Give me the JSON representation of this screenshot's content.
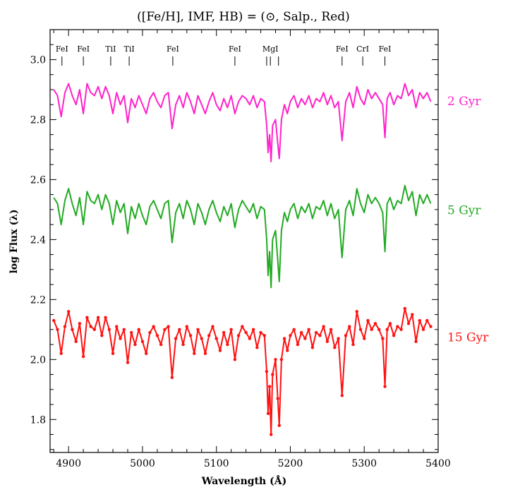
{
  "chart_data": {
    "type": "line",
    "title": "([Fe/H], IMF, HB) = (⊙, Salp., Red)",
    "xlabel": "Wavelength (Å)",
    "ylabel": "log Flux (λ)",
    "xlim": [
      4875,
      5400
    ],
    "ylim": [
      1.69,
      3.1
    ],
    "x_ticks": [
      4900,
      5000,
      5100,
      5200,
      5300,
      5400
    ],
    "x_tick_labels": [
      "4900",
      "5000",
      "5100",
      "5200",
      "5300",
      "5400"
    ],
    "y_ticks": [
      1.8,
      2.0,
      2.2,
      2.4,
      2.6,
      2.8,
      3.0
    ],
    "y_tick_labels": [
      "1.8",
      "2.0",
      "2.2",
      "2.4",
      "2.6",
      "2.8",
      "3.0"
    ],
    "grid": false,
    "line_labels": [
      {
        "label": "FeI",
        "wavelength": 4891
      },
      {
        "label": "FeI",
        "wavelength": 4920
      },
      {
        "label": "TiI",
        "wavelength": 4957
      },
      {
        "label": "TiI",
        "wavelength": 4982
      },
      {
        "label": "FeI",
        "wavelength": 5041
      },
      {
        "label": "FeI",
        "wavelength": 5125
      },
      {
        "label": "MgI",
        "wavelength": 5173
      },
      {
        "label": "FeI",
        "wavelength": 5270
      },
      {
        "label": "CrI",
        "wavelength": 5298
      },
      {
        "label": "FeI",
        "wavelength": 5328
      }
    ],
    "line_marker_wavelengths": [
      4891,
      4920,
      4957,
      4982,
      5041,
      5125,
      5168,
      5173,
      5184,
      5270,
      5298,
      5328
    ],
    "series": [
      {
        "name": "2 Gyr",
        "color": "#ff22cc",
        "markers": false,
        "x": [
          4880,
          4885,
          4890,
          4895,
          4900,
          4905,
          4910,
          4915,
          4920,
          4925,
          4930,
          4935,
          4940,
          4945,
          4950,
          4955,
          4960,
          4965,
          4970,
          4975,
          4980,
          4985,
          4990,
          4995,
          5000,
          5005,
          5010,
          5015,
          5020,
          5025,
          5030,
          5035,
          5040,
          5045,
          5050,
          5055,
          5060,
          5065,
          5070,
          5075,
          5080,
          5085,
          5090,
          5095,
          5100,
          5105,
          5110,
          5115,
          5120,
          5125,
          5130,
          5135,
          5140,
          5145,
          5150,
          5155,
          5160,
          5165,
          5168,
          5170,
          5172,
          5174,
          5176,
          5180,
          5183,
          5185,
          5188,
          5192,
          5196,
          5200,
          5205,
          5210,
          5215,
          5220,
          5225,
          5230,
          5235,
          5240,
          5245,
          5250,
          5255,
          5260,
          5265,
          5270,
          5275,
          5280,
          5285,
          5290,
          5295,
          5300,
          5305,
          5310,
          5315,
          5320,
          5325,
          5328,
          5331,
          5335,
          5340,
          5345,
          5350,
          5355,
          5360,
          5365,
          5370,
          5375,
          5380,
          5385,
          5390
        ],
        "values": [
          2.9,
          2.88,
          2.81,
          2.89,
          2.92,
          2.88,
          2.85,
          2.9,
          2.82,
          2.92,
          2.89,
          2.88,
          2.91,
          2.87,
          2.91,
          2.88,
          2.82,
          2.89,
          2.85,
          2.88,
          2.79,
          2.87,
          2.84,
          2.88,
          2.85,
          2.82,
          2.87,
          2.89,
          2.86,
          2.84,
          2.88,
          2.89,
          2.77,
          2.85,
          2.88,
          2.84,
          2.89,
          2.86,
          2.82,
          2.88,
          2.85,
          2.82,
          2.86,
          2.89,
          2.85,
          2.83,
          2.87,
          2.84,
          2.88,
          2.82,
          2.86,
          2.88,
          2.87,
          2.85,
          2.88,
          2.84,
          2.87,
          2.86,
          2.78,
          2.69,
          2.75,
          2.66,
          2.78,
          2.8,
          2.72,
          2.67,
          2.8,
          2.85,
          2.82,
          2.86,
          2.88,
          2.84,
          2.87,
          2.85,
          2.88,
          2.84,
          2.87,
          2.86,
          2.89,
          2.85,
          2.88,
          2.84,
          2.86,
          2.73,
          2.86,
          2.89,
          2.84,
          2.91,
          2.87,
          2.85,
          2.9,
          2.87,
          2.89,
          2.87,
          2.85,
          2.74,
          2.87,
          2.89,
          2.85,
          2.88,
          2.87,
          2.92,
          2.88,
          2.9,
          2.84,
          2.89,
          2.87,
          2.89,
          2.86
        ]
      },
      {
        "name": "5 Gyr",
        "color": "#22aa22",
        "markers": false,
        "x": [
          4880,
          4885,
          4890,
          4895,
          4900,
          4905,
          4910,
          4915,
          4920,
          4925,
          4930,
          4935,
          4940,
          4945,
          4950,
          4955,
          4960,
          4965,
          4970,
          4975,
          4980,
          4985,
          4990,
          4995,
          5000,
          5005,
          5010,
          5015,
          5020,
          5025,
          5030,
          5035,
          5040,
          5045,
          5050,
          5055,
          5060,
          5065,
          5070,
          5075,
          5080,
          5085,
          5090,
          5095,
          5100,
          5105,
          5110,
          5115,
          5120,
          5125,
          5130,
          5135,
          5140,
          5145,
          5150,
          5155,
          5160,
          5165,
          5168,
          5170,
          5172,
          5174,
          5176,
          5180,
          5183,
          5185,
          5188,
          5192,
          5196,
          5200,
          5205,
          5210,
          5215,
          5220,
          5225,
          5230,
          5235,
          5240,
          5245,
          5250,
          5255,
          5260,
          5265,
          5270,
          5275,
          5280,
          5285,
          5290,
          5295,
          5300,
          5305,
          5310,
          5315,
          5320,
          5325,
          5328,
          5331,
          5335,
          5340,
          5345,
          5350,
          5355,
          5360,
          5365,
          5370,
          5375,
          5380,
          5385,
          5390
        ],
        "values": [
          2.54,
          2.52,
          2.45,
          2.53,
          2.57,
          2.52,
          2.48,
          2.54,
          2.45,
          2.56,
          2.53,
          2.52,
          2.55,
          2.5,
          2.55,
          2.52,
          2.45,
          2.53,
          2.49,
          2.52,
          2.42,
          2.51,
          2.47,
          2.52,
          2.48,
          2.45,
          2.51,
          2.53,
          2.5,
          2.47,
          2.52,
          2.53,
          2.39,
          2.49,
          2.52,
          2.47,
          2.53,
          2.5,
          2.45,
          2.52,
          2.49,
          2.45,
          2.5,
          2.53,
          2.49,
          2.46,
          2.51,
          2.48,
          2.52,
          2.44,
          2.5,
          2.53,
          2.51,
          2.49,
          2.52,
          2.47,
          2.51,
          2.5,
          2.4,
          2.28,
          2.36,
          2.24,
          2.4,
          2.43,
          2.33,
          2.26,
          2.43,
          2.49,
          2.46,
          2.5,
          2.52,
          2.47,
          2.51,
          2.49,
          2.52,
          2.47,
          2.51,
          2.5,
          2.53,
          2.48,
          2.52,
          2.47,
          2.5,
          2.34,
          2.5,
          2.53,
          2.48,
          2.57,
          2.52,
          2.49,
          2.55,
          2.52,
          2.54,
          2.52,
          2.49,
          2.36,
          2.52,
          2.54,
          2.5,
          2.53,
          2.52,
          2.58,
          2.53,
          2.56,
          2.48,
          2.55,
          2.52,
          2.55,
          2.52
        ]
      },
      {
        "name": "15 Gyr",
        "color": "#ff1111",
        "markers": true,
        "x": [
          4880,
          4885,
          4890,
          4895,
          4900,
          4905,
          4910,
          4915,
          4920,
          4925,
          4930,
          4935,
          4940,
          4945,
          4950,
          4955,
          4960,
          4965,
          4970,
          4975,
          4980,
          4985,
          4990,
          4995,
          5000,
          5005,
          5010,
          5015,
          5020,
          5025,
          5030,
          5035,
          5040,
          5045,
          5050,
          5055,
          5060,
          5065,
          5070,
          5075,
          5080,
          5085,
          5090,
          5095,
          5100,
          5105,
          5110,
          5115,
          5120,
          5125,
          5130,
          5135,
          5140,
          5145,
          5150,
          5155,
          5160,
          5165,
          5168,
          5170,
          5172,
          5174,
          5176,
          5180,
          5183,
          5185,
          5188,
          5192,
          5196,
          5200,
          5205,
          5210,
          5215,
          5220,
          5225,
          5230,
          5235,
          5240,
          5245,
          5250,
          5255,
          5260,
          5265,
          5270,
          5275,
          5280,
          5285,
          5290,
          5295,
          5300,
          5305,
          5310,
          5315,
          5320,
          5325,
          5328,
          5331,
          5335,
          5340,
          5345,
          5350,
          5355,
          5360,
          5365,
          5370,
          5375,
          5380,
          5385,
          5390
        ],
        "values": [
          2.13,
          2.1,
          2.02,
          2.11,
          2.16,
          2.1,
          2.06,
          2.12,
          2.01,
          2.14,
          2.11,
          2.1,
          2.14,
          2.08,
          2.14,
          2.1,
          2.02,
          2.11,
          2.07,
          2.1,
          1.99,
          2.09,
          2.05,
          2.1,
          2.06,
          2.02,
          2.09,
          2.11,
          2.08,
          2.05,
          2.1,
          2.11,
          1.94,
          2.07,
          2.1,
          2.05,
          2.11,
          2.08,
          2.02,
          2.1,
          2.07,
          2.02,
          2.08,
          2.11,
          2.07,
          2.03,
          2.09,
          2.05,
          2.1,
          2.0,
          2.08,
          2.11,
          2.09,
          2.07,
          2.1,
          2.04,
          2.09,
          2.08,
          1.96,
          1.82,
          1.91,
          1.75,
          1.95,
          2.0,
          1.87,
          1.78,
          2.0,
          2.07,
          2.03,
          2.08,
          2.1,
          2.05,
          2.09,
          2.07,
          2.1,
          2.04,
          2.09,
          2.08,
          2.11,
          2.06,
          2.1,
          2.04,
          2.07,
          1.88,
          2.08,
          2.11,
          2.05,
          2.16,
          2.1,
          2.07,
          2.13,
          2.1,
          2.12,
          2.1,
          2.07,
          1.91,
          2.1,
          2.12,
          2.08,
          2.11,
          2.1,
          2.17,
          2.12,
          2.15,
          2.06,
          2.13,
          2.1,
          2.13,
          2.11
        ]
      }
    ]
  }
}
